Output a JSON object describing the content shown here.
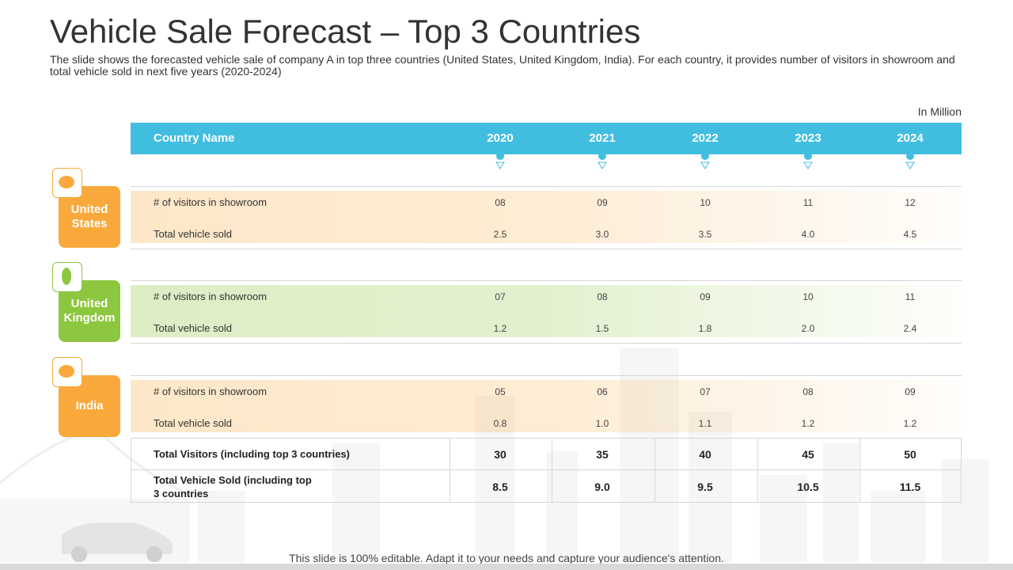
{
  "title": "Vehicle Sale Forecast – Top 3 Countries",
  "subtitle": "The slide shows the forecasted vehicle sale of company A in top three countries (United States, United Kingdom, India). For each country, it provides number of visitors in showroom and total vehicle sold in next five years (2020-2024)",
  "unit": "In Million",
  "table": {
    "header": [
      "Country Name",
      "2020",
      "2021",
      "2022",
      "2023",
      "2024"
    ],
    "groups": [
      {
        "country": "United States",
        "rows": [
          {
            "label": "# of visitors in showroom",
            "values": [
              "08",
              "09",
              "10",
              "11",
              "12"
            ]
          },
          {
            "label": "Total vehicle sold",
            "values": [
              "2.5",
              "3.0",
              "3.5",
              "4.0",
              "4.5"
            ]
          }
        ]
      },
      {
        "country": "United Kingdom",
        "rows": [
          {
            "label": "# of visitors in showroom",
            "values": [
              "07",
              "08",
              "09",
              "10",
              "11"
            ]
          },
          {
            "label": "Total vehicle sold",
            "values": [
              "1.2",
              "1.5",
              "1.8",
              "2.0",
              "2.4"
            ]
          }
        ]
      },
      {
        "country": "India",
        "rows": [
          {
            "label": "# of visitors in showroom",
            "values": [
              "05",
              "06",
              "07",
              "08",
              "09"
            ]
          },
          {
            "label": "Total vehicle sold",
            "values": [
              "0.8",
              "1.0",
              "1.1",
              "1.2",
              "1.2"
            ]
          }
        ]
      }
    ],
    "totals": [
      {
        "label": "Total Visitors (including top 3 countries)",
        "values": [
          "30",
          "35",
          "40",
          "45",
          "50"
        ]
      },
      {
        "label": "Total Vehicle Sold (including top 3 countries",
        "values": [
          "8.5",
          "9.0",
          "9.5",
          "10.5",
          "11.5"
        ]
      }
    ]
  },
  "footer": "This slide is 100% editable. Adapt it to your needs and capture your audience's attention."
}
